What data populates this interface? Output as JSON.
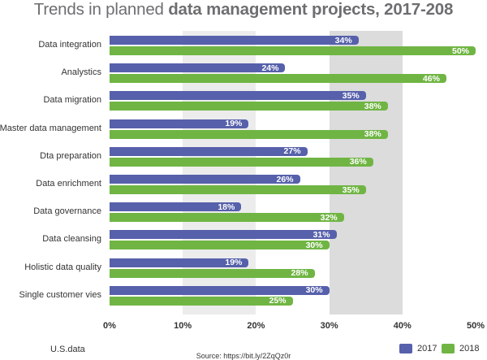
{
  "title_regular": "Trends in planned ",
  "title_bold": "data management projects, 2017-208",
  "footer": {
    "brand": "U.S.data",
    "source": "Source: https://bit.ly/2ZqQz0r"
  },
  "colors": {
    "s2017": "#5660ab",
    "s2018": "#70b544",
    "band_light": "#ececec",
    "band_dark": "#dcdcdc"
  },
  "chart_data": {
    "type": "bar",
    "orientation": "horizontal",
    "title": "Trends in planned data management projects, 2017-208",
    "categories": [
      "Data integration",
      "Analystics",
      "Data migration",
      "Master data management",
      "Dta preparation",
      "Data enrichment",
      "Data governance",
      "Data cleansing",
      "Holistic data quality",
      "Single customer vies"
    ],
    "series": [
      {
        "name": "2017",
        "color": "#5660ab",
        "values": [
          34,
          24,
          35,
          19,
          27,
          26,
          18,
          31,
          19,
          30
        ]
      },
      {
        "name": "2018",
        "color": "#70b544",
        "values": [
          50,
          46,
          38,
          38,
          36,
          35,
          32,
          30,
          28,
          25
        ]
      }
    ],
    "value_suffix": "%",
    "xlim": [
      0,
      50
    ],
    "xticks": [
      "0%",
      "10%",
      "20%",
      "30%",
      "40%",
      "50%"
    ],
    "legend_position": "bottom-right",
    "grid": "alternating vertical bands"
  }
}
